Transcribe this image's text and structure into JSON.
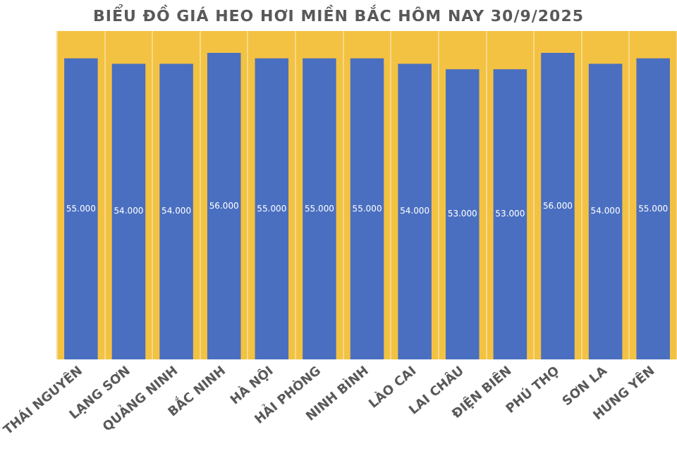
{
  "chart_data": {
    "type": "bar",
    "title": "BIỂU ĐỒ GIÁ HEO HƠI MIỀN BẮC HÔM NAY 30/9/2025",
    "categories": [
      "THÁI NGUYÊN",
      "LẠNG SƠN",
      "QUẢNG NINH",
      "BẮC NINH",
      "HÀ NỘI",
      "HẢI PHÒNG",
      "NINH BÌNH",
      "LÀO CAI",
      "LAI CHÂU",
      "ĐIỆN BIÊN",
      "PHÚ THỌ",
      "SƠN LA",
      "HƯNG YÊN"
    ],
    "series": [
      {
        "color": "#4a6fc0",
        "values": [
          55000,
          54000,
          54000,
          56000,
          55000,
          55000,
          55000,
          54000,
          53000,
          53000,
          56000,
          54000,
          55000
        ],
        "value_labels": [
          "55.000",
          "54.000",
          "54.000",
          "56.000",
          "55.000",
          "55.000",
          "55.000",
          "54.000",
          "53.000",
          "53.000",
          "56.000",
          "54.000",
          "55.000"
        ]
      }
    ],
    "grid": "x",
    "legend": false,
    "tick_labels": "x"
  }
}
